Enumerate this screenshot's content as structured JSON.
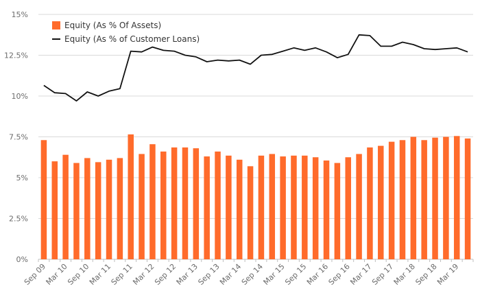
{
  "chart_data": {
    "type": "bar+line",
    "colors": {
      "bar": "#ff6b2b",
      "line": "#111111",
      "grid": "#d9d9d9",
      "axis": "#bfbfbf",
      "text": "#6b6b6b"
    },
    "ylim": [
      0,
      15
    ],
    "yticks": [
      0,
      2.5,
      5,
      7.5,
      10,
      12.5,
      15
    ],
    "ytick_labels": [
      "0%",
      "2.5%",
      "5%",
      "7.5%",
      "10%",
      "12.5%",
      "15%"
    ],
    "categories": [
      "Sep 09",
      "Dec 09",
      "Mar 10",
      "Jun 10",
      "Sep 10",
      "Dec 10",
      "Mar 11",
      "Jun 11",
      "Sep 11",
      "Dec 11",
      "Mar 12",
      "Jun 12",
      "Sep 12",
      "Dec 12",
      "Mar 13",
      "Jun 13",
      "Sep 13",
      "Dec 13",
      "Mar 14",
      "Jun 14",
      "Sep 14",
      "Dec 14",
      "Mar 15",
      "Jun 15",
      "Sep 15",
      "Dec 15",
      "Mar 16",
      "Jun 16",
      "Sep 16",
      "Dec 16",
      "Mar 17",
      "Jun 17",
      "Sep 17",
      "Dec 17",
      "Mar 18",
      "Jun 18",
      "Sep 18",
      "Dec 18",
      "Mar 19",
      "Jun 19"
    ],
    "xtick_labels": [
      "Sep 09",
      "Mar 10",
      "Sep 10",
      "Mar 11",
      "Sep 11",
      "Mar 12",
      "Sep 12",
      "Mar 13",
      "Sep 13",
      "Mar 14",
      "Sep 14",
      "Mar 15",
      "Sep 15",
      "Mar 16",
      "Sep 16",
      "Mar 17",
      "Sep 17",
      "Mar 18",
      "Sep 18",
      "Mar 19"
    ],
    "series": [
      {
        "name": "Equity (As % Of Assets)",
        "kind": "bar",
        "values": [
          7.3,
          6.0,
          6.4,
          5.9,
          6.2,
          5.95,
          6.1,
          6.2,
          7.65,
          6.45,
          7.05,
          6.6,
          6.85,
          6.85,
          6.8,
          6.3,
          6.6,
          6.35,
          6.1,
          5.7,
          6.35,
          6.45,
          6.3,
          6.35,
          6.35,
          6.25,
          6.05,
          5.9,
          6.25,
          6.45,
          6.85,
          6.95,
          7.2,
          7.3,
          7.5,
          7.3,
          7.45,
          7.5,
          7.55,
          7.4
        ]
      },
      {
        "name": "Equity (As % of Customer Loans)",
        "kind": "line",
        "values": [
          10.65,
          10.2,
          10.15,
          9.7,
          10.25,
          10.0,
          10.3,
          10.45,
          12.75,
          12.7,
          13.0,
          12.8,
          12.75,
          12.5,
          12.4,
          12.1,
          12.2,
          12.15,
          12.2,
          11.95,
          12.5,
          12.55,
          12.75,
          12.95,
          12.8,
          12.95,
          12.7,
          12.35,
          12.55,
          13.75,
          13.7,
          13.05,
          13.05,
          13.3,
          13.15,
          12.9,
          12.85,
          12.9,
          12.95,
          12.7
        ]
      }
    ]
  }
}
